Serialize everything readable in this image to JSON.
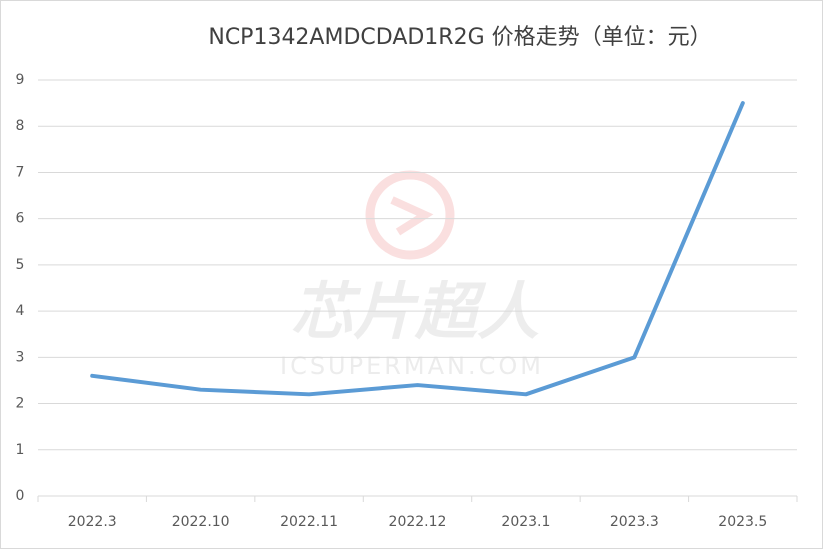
{
  "chart_data": {
    "type": "line",
    "title": "NCP1342AMDCDAD1R2G 价格走势（单位：元）",
    "categories": [
      "2022.3",
      "2022.10",
      "2022.11",
      "2022.12",
      "2023.1",
      "2023.3",
      "2023.5"
    ],
    "values": [
      2.6,
      2.3,
      2.2,
      2.4,
      2.2,
      3.0,
      8.5
    ],
    "color": "#5b9bd5",
    "ylim": [
      0,
      9
    ],
    "yticks": [
      0,
      1,
      2,
      3,
      4,
      5,
      6,
      7,
      8,
      9
    ],
    "grid": true,
    "watermark": {
      "text": "芯片超人",
      "subtext": "ICSUPERMAN.COM"
    }
  }
}
